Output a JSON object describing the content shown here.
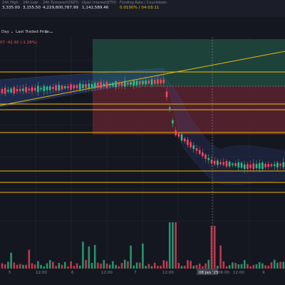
{
  "stats": [
    {
      "label": "24h High",
      "value": "3,335.00"
    },
    {
      "label": "24h Low",
      "value": "3,155.50"
    },
    {
      "label": "24h Turnover(USDT)",
      "value": "4,229,800,787.99"
    },
    {
      "label": "Open Interest(ETH)",
      "value": "1,142,589.46"
    },
    {
      "label": "Funding Rate / Countdown",
      "value": "0.0100% / 04:03:11"
    }
  ],
  "toolbar": {
    "interval_label": "Day",
    "price_type_label": "Last Traded Price",
    "currency_label": "$"
  },
  "price_change": "07  -42.92 (-1.28%)",
  "x_axis_labels": [
    "5",
    "12:00",
    "6",
    "12:00",
    "7",
    "12:00",
    "08 Jan '25",
    "06:00",
    "12:00",
    "9"
  ],
  "colors": {
    "up": "#2ebd85",
    "down": "#f6465d",
    "level_line": "#f0b90b",
    "band": "#3d6fd6",
    "long_zone": "#1e4a3f",
    "short_zone": "#5a2330"
  }
}
